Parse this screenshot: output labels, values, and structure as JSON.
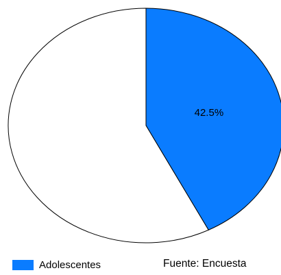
{
  "chart_data": {
    "type": "pie",
    "slices": [
      {
        "label": "Adolescentes",
        "value": 42.5,
        "data_label": "42.5%",
        "color": "#0a7cff"
      },
      {
        "label": "",
        "value": 57.5,
        "data_label": "",
        "color": "#ffffff"
      }
    ],
    "legend": {
      "position": "bottom-left",
      "entries": [
        "Adolescentes"
      ]
    },
    "source": "Fuente: Encuesta"
  }
}
